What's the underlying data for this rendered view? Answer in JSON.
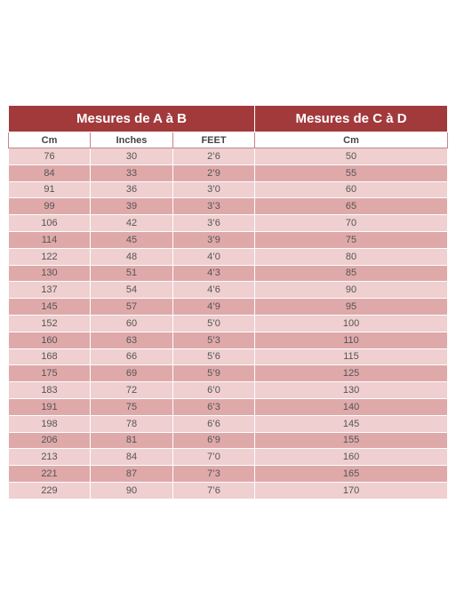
{
  "table": {
    "group_headers": [
      "Mesures de A à B",
      "Mesures de C à D"
    ],
    "column_headers": [
      "Cm",
      "Inches",
      "FEET",
      "Cm"
    ],
    "rows": [
      [
        "76",
        "30",
        "2’6",
        "50"
      ],
      [
        "84",
        "33",
        "2’9",
        "55"
      ],
      [
        "91",
        "36",
        "3’0",
        "60"
      ],
      [
        "99",
        "39",
        "3’3",
        "65"
      ],
      [
        "106",
        "42",
        "3’6",
        "70"
      ],
      [
        "114",
        "45",
        "3’9",
        "75"
      ],
      [
        "122",
        "48",
        "4’0",
        "80"
      ],
      [
        "130",
        "51",
        "4’3",
        "85"
      ],
      [
        "137",
        "54",
        "4’6",
        "90"
      ],
      [
        "145",
        "57",
        "4’9",
        "95"
      ],
      [
        "152",
        "60",
        "5’0",
        "100"
      ],
      [
        "160",
        "63",
        "5’3",
        "110"
      ],
      [
        "168",
        "66",
        "5’6",
        "115"
      ],
      [
        "175",
        "69",
        "5’9",
        "125"
      ],
      [
        "183",
        "72",
        "6’0",
        "130"
      ],
      [
        "191",
        "75",
        "6’3",
        "140"
      ],
      [
        "198",
        "78",
        "6’6",
        "145"
      ],
      [
        "206",
        "81",
        "6’9",
        "155"
      ],
      [
        "213",
        "84",
        "7’0",
        "160"
      ],
      [
        "221",
        "87",
        "7’3",
        "165"
      ],
      [
        "229",
        "90",
        "7’6",
        "170"
      ]
    ]
  },
  "colors": {
    "header_bg": "#a23a3c",
    "row_light": "#efcfd0",
    "row_dark": "#dfa9aa"
  }
}
